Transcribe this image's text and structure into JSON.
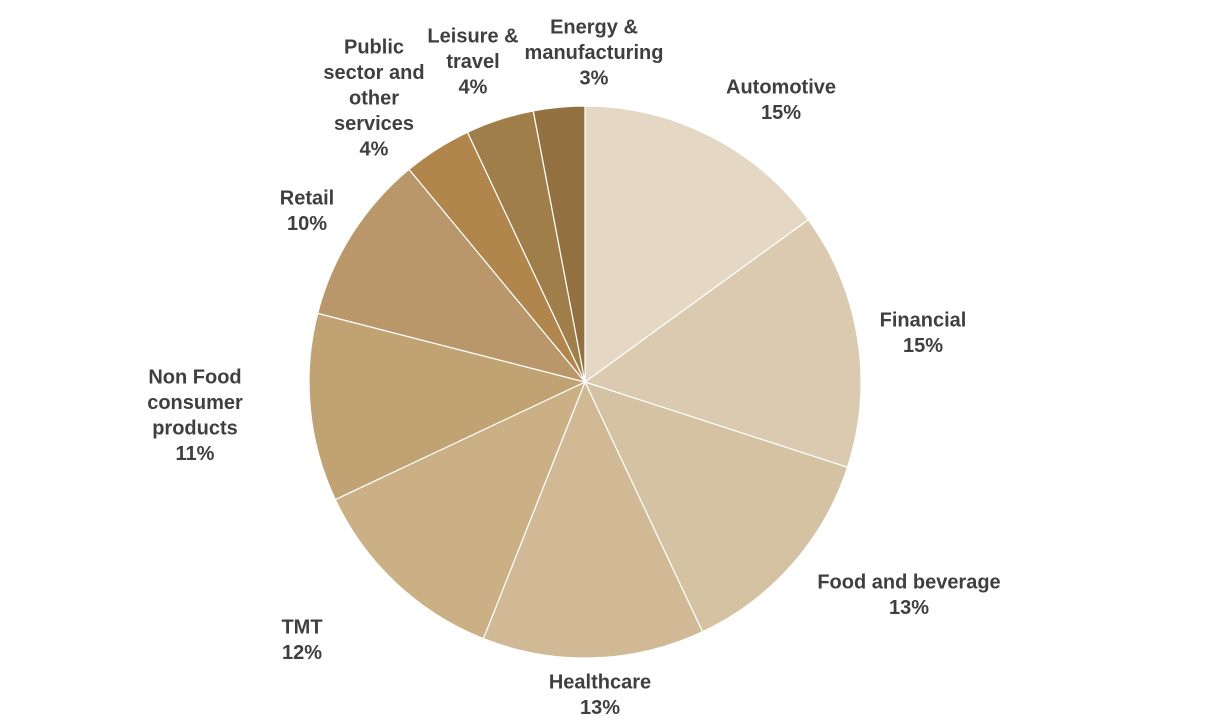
{
  "chart_data": {
    "type": "pie",
    "title": "",
    "slices": [
      {
        "label_lines": [
          "Automotive"
        ],
        "value_label": "15%",
        "value": 15,
        "color": "#e4d8c4"
      },
      {
        "label_lines": [
          "Financial"
        ],
        "value_label": "15%",
        "value": 15,
        "color": "#dbcab0"
      },
      {
        "label_lines": [
          "Food and beverage"
        ],
        "value_label": "13%",
        "value": 13,
        "color": "#d5c2a2"
      },
      {
        "label_lines": [
          "Healthcare"
        ],
        "value_label": "13%",
        "value": 13,
        "color": "#d1b996"
      },
      {
        "label_lines": [
          "TMT"
        ],
        "value_label": "12%",
        "value": 12,
        "color": "#cbb086"
      },
      {
        "label_lines": [
          "Non Food",
          "consumer",
          "products"
        ],
        "value_label": "11%",
        "value": 11,
        "color": "#c1a273"
      },
      {
        "label_lines": [
          "Retail"
        ],
        "value_label": "10%",
        "value": 10,
        "color": "#b9976a"
      },
      {
        "label_lines": [
          "Public",
          "sector and",
          "other",
          "services"
        ],
        "value_label": "4%",
        "value": 4,
        "color": "#b0864c"
      },
      {
        "label_lines": [
          "Leisure &",
          "travel"
        ],
        "value_label": "4%",
        "value": 4,
        "color": "#a07e4a"
      },
      {
        "label_lines": [
          "Energy &",
          "manufacturing"
        ],
        "value_label": "3%",
        "value": 3,
        "color": "#92703f"
      }
    ]
  }
}
